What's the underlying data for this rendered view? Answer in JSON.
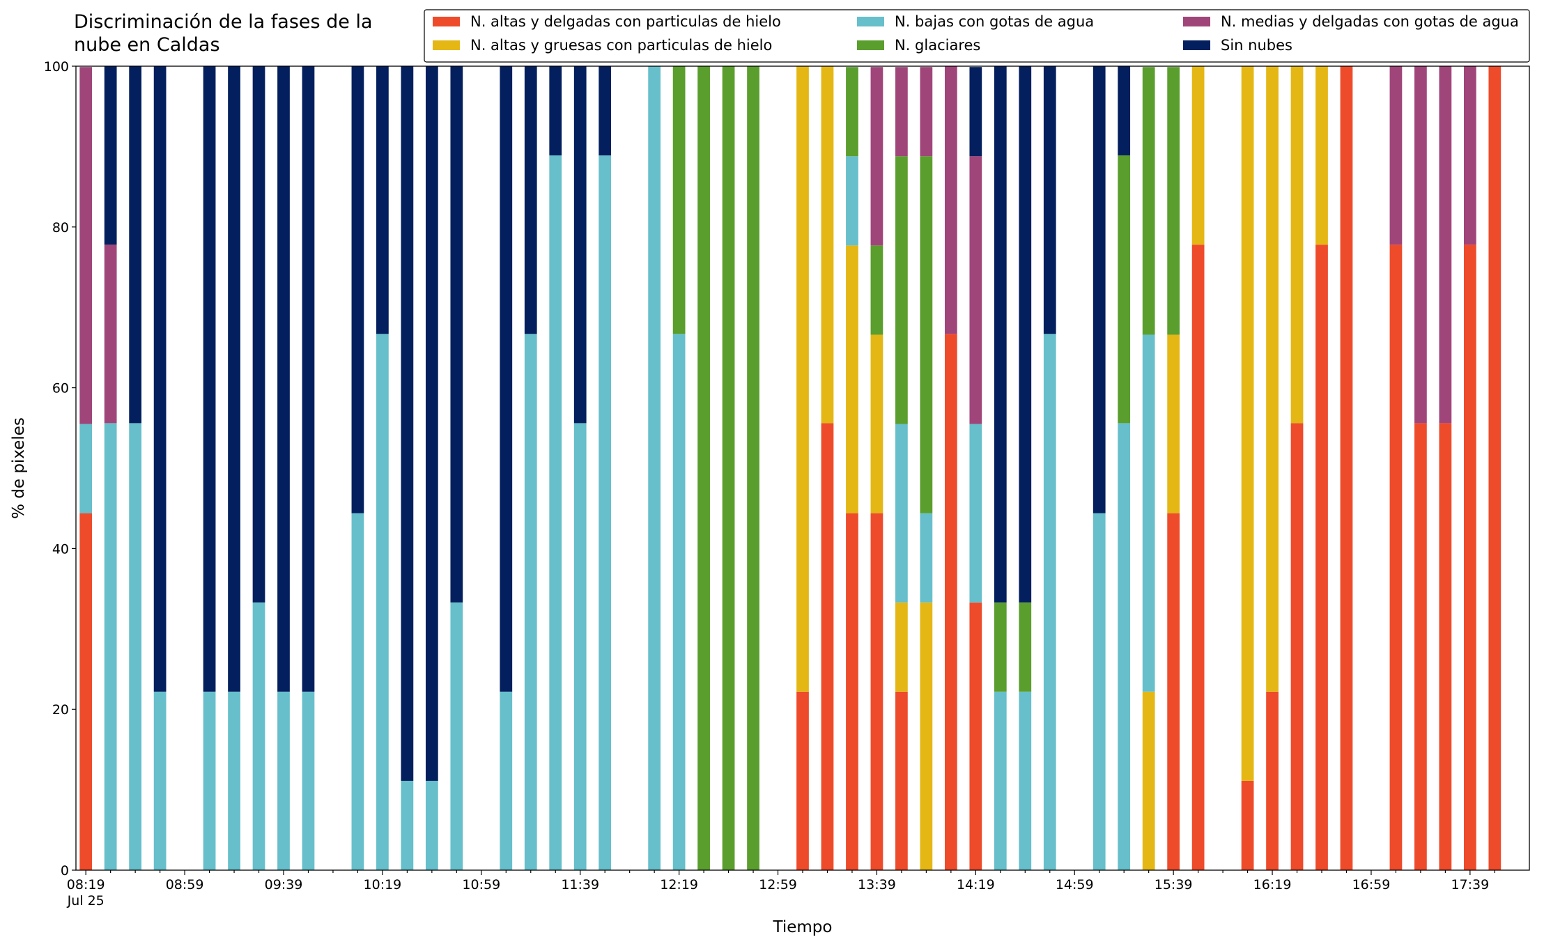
{
  "chart_data": {
    "type": "stacked_bar",
    "title": "Discriminación de la fases de la\nnube en Caldas",
    "xlabel": "Tiempo",
    "ylabel": "% de pixeles",
    "date_label": "Jul 25",
    "categories": [
      "08:19",
      null,
      null,
      null,
      "08:59",
      null,
      null,
      null,
      "09:39",
      null,
      null,
      null,
      "10:19",
      null,
      null,
      null,
      "10:59",
      null,
      null,
      null,
      "11:39",
      null,
      null,
      null,
      "12:19",
      null,
      null,
      null,
      "12:59",
      null,
      null,
      null,
      "13:39",
      null,
      null,
      null,
      "14:19",
      null,
      null,
      null,
      "14:59",
      null,
      null,
      null,
      "15:39",
      null,
      null,
      null,
      "16:19",
      null,
      null,
      null,
      "16:59",
      null,
      null,
      null,
      "17:39",
      null
    ],
    "ylim": [
      0,
      100
    ],
    "yticks": [
      0,
      20,
      40,
      60,
      80,
      100
    ],
    "legend": "top-right",
    "series": [
      {
        "name": "N. altas y delgadas con particulas de hielo",
        "color": "#ee4b2b",
        "values": [
          44.4,
          0,
          0,
          0,
          0,
          0,
          0,
          0,
          0,
          0,
          0,
          0,
          0,
          0,
          0,
          0,
          0,
          0,
          0,
          0,
          0,
          0,
          0,
          0,
          0,
          0,
          0,
          0,
          0,
          22.2,
          55.6,
          44.4,
          44.4,
          22.2,
          0,
          66.7,
          33.3,
          0,
          0,
          0,
          0,
          0,
          0,
          0,
          44.4,
          77.8,
          0,
          11.1,
          22.2,
          55.6,
          77.8,
          100,
          0,
          77.8,
          55.6,
          55.6,
          77.8,
          100
        ]
      },
      {
        "name": "N. altas y gruesas con particulas de hielo",
        "color": "#e4b714",
        "values": [
          0,
          0,
          0,
          0,
          0,
          0,
          0,
          0,
          0,
          0,
          0,
          0,
          0,
          0,
          0,
          0,
          0,
          0,
          0,
          0,
          0,
          0,
          0,
          0,
          0,
          0,
          0,
          0,
          0,
          77.8,
          44.4,
          33.3,
          22.2,
          11.1,
          33.3,
          0,
          0,
          0,
          0,
          0,
          0,
          0,
          0,
          22.2,
          22.2,
          22.2,
          0,
          88.9,
          77.8,
          44.4,
          22.2,
          0,
          0,
          0,
          0,
          0,
          0,
          0
        ]
      },
      {
        "name": "N. bajas con gotas de agua",
        "color": "#66bfcb",
        "values": [
          11.1,
          55.6,
          55.6,
          22.2,
          0,
          22.2,
          22.2,
          33.3,
          22.2,
          22.2,
          0,
          44.4,
          66.7,
          11.1,
          11.1,
          33.3,
          0,
          22.2,
          66.7,
          88.9,
          55.6,
          88.9,
          0,
          100,
          66.7,
          0,
          0,
          0,
          0,
          0,
          0,
          11.1,
          0,
          22.2,
          11.1,
          0,
          22.2,
          22.2,
          22.2,
          66.7,
          0,
          44.4,
          55.6,
          44.4,
          0,
          0,
          0,
          0,
          0,
          0,
          0,
          0,
          0,
          0,
          0,
          0,
          0,
          0
        ]
      },
      {
        "name": "N. glaciares",
        "color": "#5a9e2d",
        "values": [
          0,
          0,
          0,
          0,
          0,
          0,
          0,
          0,
          0,
          0,
          0,
          0,
          0,
          0,
          0,
          0,
          0,
          0,
          0,
          0,
          0,
          0,
          0,
          0,
          33.3,
          100,
          100,
          100,
          0,
          0,
          0,
          11.1,
          11.1,
          33.3,
          44.4,
          0,
          0,
          11.1,
          11.1,
          0,
          0,
          0,
          33.3,
          33.3,
          33.3,
          0,
          0,
          0,
          0,
          0,
          0,
          0,
          0,
          0,
          0,
          0,
          0,
          0
        ]
      },
      {
        "name": "N. medias y delgadas con gotas de agua",
        "color": "#a0457a",
        "values": [
          44.4,
          22.2,
          0,
          0,
          0,
          0,
          0,
          0,
          0,
          0,
          0,
          0,
          0,
          0,
          0,
          0,
          0,
          0,
          0,
          0,
          0,
          0,
          0,
          0,
          0,
          0,
          0,
          0,
          0,
          0,
          0,
          0,
          22.2,
          11.1,
          11.1,
          33.3,
          33.3,
          0,
          0,
          0,
          0,
          0,
          0,
          0,
          0,
          0,
          0,
          0,
          0,
          0,
          0,
          0,
          0,
          22.2,
          44.4,
          44.4,
          22.2,
          0
        ]
      },
      {
        "name": "Sin nubes",
        "color": "#031f5e",
        "values": [
          0,
          22.2,
          44.4,
          77.8,
          0,
          77.8,
          77.8,
          66.7,
          77.8,
          77.8,
          0,
          55.6,
          33.3,
          88.9,
          88.9,
          66.7,
          0,
          77.8,
          33.3,
          11.1,
          44.4,
          11.1,
          0,
          0,
          0,
          0,
          0,
          0,
          0,
          0,
          0,
          0,
          0,
          0,
          0,
          0,
          11.1,
          66.7,
          66.7,
          33.3,
          0,
          55.6,
          11.1,
          0,
          0,
          0,
          0,
          0,
          0,
          0,
          0,
          0,
          0,
          0,
          0,
          0,
          0,
          0
        ]
      }
    ]
  }
}
